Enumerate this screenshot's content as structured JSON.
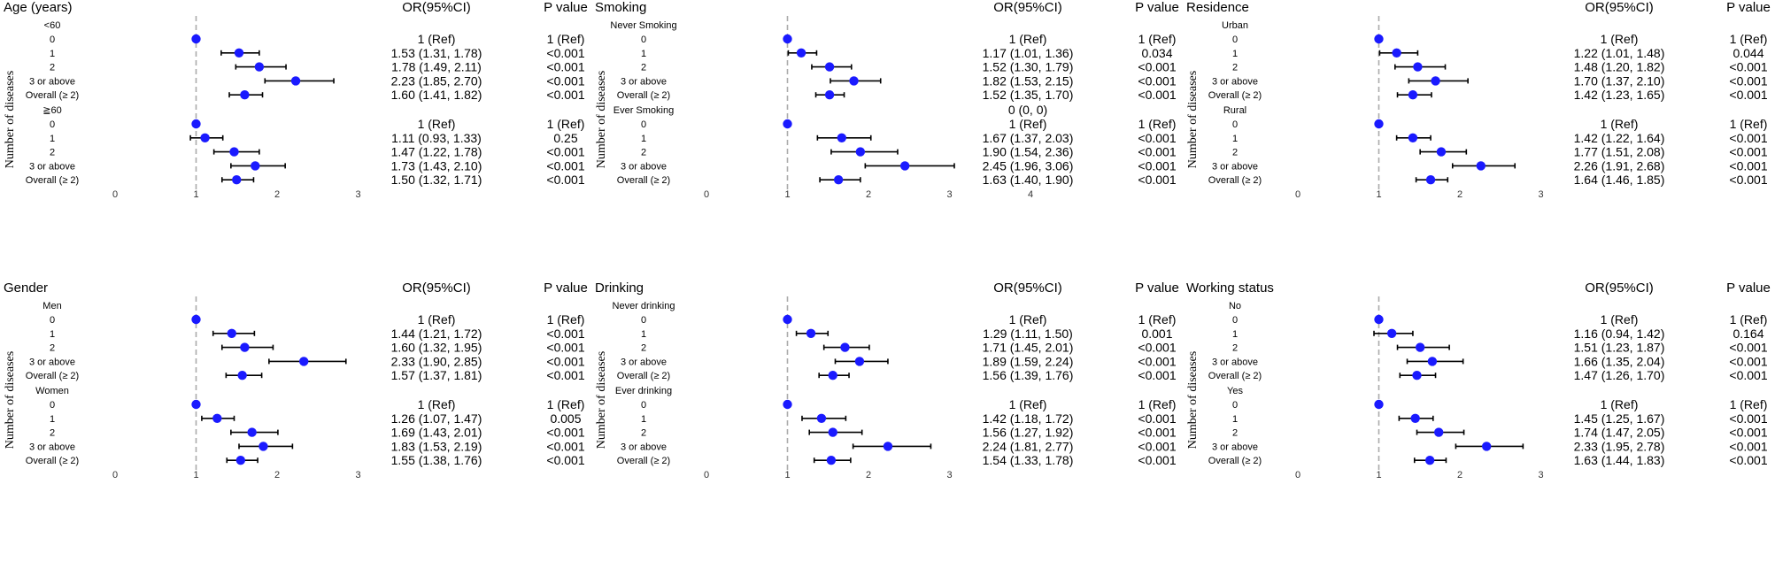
{
  "headers": {
    "or": "OR(95%CI)",
    "p": "P value"
  },
  "axis_label": "Number of diseases",
  "row_labels": [
    "0",
    "1",
    "2",
    "3 or above",
    "Overall (≥ 2)"
  ],
  "colors": {
    "point": "#1a1aff",
    "whisker": "#000000",
    "refline": "#aaaaaa"
  },
  "chart_data": [
    {
      "type": "forest",
      "title": "Age (years)",
      "x_ticks": [
        0,
        1,
        2,
        3
      ],
      "xlim": [
        0,
        3
      ],
      "groups": [
        {
          "label": "<60",
          "rows": [
            {
              "label": "0",
              "or": 1,
              "lo": 1,
              "hi": 1,
              "or_text": "1 (Ref)",
              "p": "1 (Ref)"
            },
            {
              "label": "1",
              "or": 1.53,
              "lo": 1.31,
              "hi": 1.78,
              "or_text": "1.53 (1.31, 1.78)",
              "p": "<0.001"
            },
            {
              "label": "2",
              "or": 1.78,
              "lo": 1.49,
              "hi": 2.11,
              "or_text": "1.78 (1.49, 2.11)",
              "p": "<0.001"
            },
            {
              "label": "3 or above",
              "or": 2.23,
              "lo": 1.85,
              "hi": 2.7,
              "or_text": "2.23 (1.85, 2.70)",
              "p": "<0.001"
            },
            {
              "label": "Overall (≥ 2)",
              "or": 1.6,
              "lo": 1.41,
              "hi": 1.82,
              "or_text": "1.60 (1.41, 1.82)",
              "p": "<0.001"
            }
          ]
        },
        {
          "label": "≧60",
          "rows": [
            {
              "label": "0",
              "or": 1,
              "lo": 1,
              "hi": 1,
              "or_text": "1 (Ref)",
              "p": "1 (Ref)"
            },
            {
              "label": "1",
              "or": 1.11,
              "lo": 0.93,
              "hi": 1.33,
              "or_text": "1.11 (0.93, 1.33)",
              "p": "0.25"
            },
            {
              "label": "2",
              "or": 1.47,
              "lo": 1.22,
              "hi": 1.78,
              "or_text": "1.47 (1.22, 1.78)",
              "p": "<0.001"
            },
            {
              "label": "3 or above",
              "or": 1.73,
              "lo": 1.43,
              "hi": 2.1,
              "or_text": "1.73 (1.43, 2.10)",
              "p": "<0.001"
            },
            {
              "label": "Overall (≥ 2)",
              "or": 1.5,
              "lo": 1.32,
              "hi": 1.71,
              "or_text": "1.50 (1.32, 1.71)",
              "p": "<0.001"
            }
          ]
        }
      ]
    },
    {
      "type": "forest",
      "title": "Smoking",
      "x_ticks": [
        0,
        1,
        2,
        3,
        4
      ],
      "xlim": [
        0,
        4
      ],
      "groups": [
        {
          "label": "Never Smoking",
          "rows": [
            {
              "label": "0",
              "or": 1,
              "lo": 1,
              "hi": 1,
              "or_text": "1 (Ref)",
              "p": "1 (Ref)"
            },
            {
              "label": "1",
              "or": 1.17,
              "lo": 1.01,
              "hi": 1.36,
              "or_text": "1.17 (1.01, 1.36)",
              "p": "0.034"
            },
            {
              "label": "2",
              "or": 1.52,
              "lo": 1.3,
              "hi": 1.79,
              "or_text": "1.52 (1.30, 1.79)",
              "p": "<0.001"
            },
            {
              "label": "3 or above",
              "or": 1.82,
              "lo": 1.53,
              "hi": 2.15,
              "or_text": "1.82 (1.53, 2.15)",
              "p": "<0.001"
            },
            {
              "label": "Overall (≥ 2)",
              "or": 1.52,
              "lo": 1.35,
              "hi": 1.7,
              "or_text": "1.52 (1.35, 1.70)",
              "p": "<0.001"
            }
          ]
        },
        {
          "label": "Ever Smoking",
          "header_text": "0 (0, 0)",
          "rows": [
            {
              "label": "0",
              "or": 1,
              "lo": 1,
              "hi": 1,
              "or_text": "1 (Ref)",
              "p": "1 (Ref)"
            },
            {
              "label": "1",
              "or": 1.67,
              "lo": 1.37,
              "hi": 2.03,
              "or_text": "1.67 (1.37, 2.03)",
              "p": "<0.001"
            },
            {
              "label": "2",
              "or": 1.9,
              "lo": 1.54,
              "hi": 2.36,
              "or_text": "1.90 (1.54, 2.36)",
              "p": "<0.001"
            },
            {
              "label": "3 or above",
              "or": 2.45,
              "lo": 1.96,
              "hi": 3.06,
              "or_text": "2.45 (1.96, 3.06)",
              "p": "<0.001"
            },
            {
              "label": "Overall (≥ 2)",
              "or": 1.63,
              "lo": 1.4,
              "hi": 1.9,
              "or_text": "1.63 (1.40, 1.90)",
              "p": "<0.001"
            }
          ]
        }
      ]
    },
    {
      "type": "forest",
      "title": "Residence",
      "x_ticks": [
        0,
        1,
        2,
        3
      ],
      "xlim": [
        0,
        3
      ],
      "groups": [
        {
          "label": "Urban",
          "rows": [
            {
              "label": "0",
              "or": 1,
              "lo": 1,
              "hi": 1,
              "or_text": "1 (Ref)",
              "p": "1 (Ref)"
            },
            {
              "label": "1",
              "or": 1.22,
              "lo": 1.01,
              "hi": 1.48,
              "or_text": "1.22 (1.01, 1.48)",
              "p": "0.044"
            },
            {
              "label": "2",
              "or": 1.48,
              "lo": 1.2,
              "hi": 1.82,
              "or_text": "1.48 (1.20, 1.82)",
              "p": "<0.001"
            },
            {
              "label": "3 or above",
              "or": 1.7,
              "lo": 1.37,
              "hi": 2.1,
              "or_text": "1.70 (1.37, 2.10)",
              "p": "<0.001"
            },
            {
              "label": "Overall (≥ 2)",
              "or": 1.42,
              "lo": 1.23,
              "hi": 1.65,
              "or_text": "1.42 (1.23, 1.65)",
              "p": "<0.001"
            }
          ]
        },
        {
          "label": "Rural",
          "rows": [
            {
              "label": "0",
              "or": 1,
              "lo": 1,
              "hi": 1,
              "or_text": "1 (Ref)",
              "p": "1 (Ref)"
            },
            {
              "label": "1",
              "or": 1.42,
              "lo": 1.22,
              "hi": 1.64,
              "or_text": "1.42 (1.22, 1.64)",
              "p": "<0.001"
            },
            {
              "label": "2",
              "or": 1.77,
              "lo": 1.51,
              "hi": 2.08,
              "or_text": "1.77 (1.51, 2.08)",
              "p": "<0.001"
            },
            {
              "label": "3 or above",
              "or": 2.26,
              "lo": 1.91,
              "hi": 2.68,
              "or_text": "2.26 (1.91, 2.68)",
              "p": "<0.001"
            },
            {
              "label": "Overall (≥ 2)",
              "or": 1.64,
              "lo": 1.46,
              "hi": 1.85,
              "or_text": "1.64 (1.46, 1.85)",
              "p": "<0.001"
            }
          ]
        }
      ]
    },
    {
      "type": "forest",
      "title": "Gender",
      "x_ticks": [
        0,
        1,
        2,
        3
      ],
      "xlim": [
        0,
        3
      ],
      "groups": [
        {
          "label": "Men",
          "rows": [
            {
              "label": "0",
              "or": 1,
              "lo": 1,
              "hi": 1,
              "or_text": "1 (Ref)",
              "p": "1 (Ref)"
            },
            {
              "label": "1",
              "or": 1.44,
              "lo": 1.21,
              "hi": 1.72,
              "or_text": "1.44 (1.21, 1.72)",
              "p": "<0.001"
            },
            {
              "label": "2",
              "or": 1.6,
              "lo": 1.32,
              "hi": 1.95,
              "or_text": "1.60 (1.32, 1.95)",
              "p": "<0.001"
            },
            {
              "label": "3 or above",
              "or": 2.33,
              "lo": 1.9,
              "hi": 2.85,
              "or_text": "2.33 (1.90, 2.85)",
              "p": "<0.001"
            },
            {
              "label": "Overall (≥ 2)",
              "or": 1.57,
              "lo": 1.37,
              "hi": 1.81,
              "or_text": "1.57 (1.37, 1.81)",
              "p": "<0.001"
            }
          ]
        },
        {
          "label": "Women",
          "rows": [
            {
              "label": "0",
              "or": 1,
              "lo": 1,
              "hi": 1,
              "or_text": "1 (Ref)",
              "p": "1 (Ref)"
            },
            {
              "label": "1",
              "or": 1.26,
              "lo": 1.07,
              "hi": 1.47,
              "or_text": "1.26 (1.07, 1.47)",
              "p": "0.005"
            },
            {
              "label": "2",
              "or": 1.69,
              "lo": 1.43,
              "hi": 2.01,
              "or_text": "1.69 (1.43, 2.01)",
              "p": "<0.001"
            },
            {
              "label": "3 or above",
              "or": 1.83,
              "lo": 1.53,
              "hi": 2.19,
              "or_text": "1.83 (1.53, 2.19)",
              "p": "<0.001"
            },
            {
              "label": "Overall (≥ 2)",
              "or": 1.55,
              "lo": 1.38,
              "hi": 1.76,
              "or_text": "1.55 (1.38, 1.76)",
              "p": "<0.001"
            }
          ]
        }
      ]
    },
    {
      "type": "forest",
      "title": "Drinking",
      "x_ticks": [
        0,
        1,
        2,
        3
      ],
      "xlim": [
        0,
        3
      ],
      "groups": [
        {
          "label": "Never drinking",
          "rows": [
            {
              "label": "0",
              "or": 1,
              "lo": 1,
              "hi": 1,
              "or_text": "1 (Ref)",
              "p": "1 (Ref)"
            },
            {
              "label": "1",
              "or": 1.29,
              "lo": 1.11,
              "hi": 1.5,
              "or_text": "1.29 (1.11, 1.50)",
              "p": "0.001"
            },
            {
              "label": "2",
              "or": 1.71,
              "lo": 1.45,
              "hi": 2.01,
              "or_text": "1.71 (1.45, 2.01)",
              "p": "<0.001"
            },
            {
              "label": "3 or above",
              "or": 1.89,
              "lo": 1.59,
              "hi": 2.24,
              "or_text": "1.89 (1.59, 2.24)",
              "p": "<0.001"
            },
            {
              "label": "Overall (≥ 2)",
              "or": 1.56,
              "lo": 1.39,
              "hi": 1.76,
              "or_text": "1.56 (1.39, 1.76)",
              "p": "<0.001"
            }
          ]
        },
        {
          "label": "Ever drinking",
          "rows": [
            {
              "label": "0",
              "or": 1,
              "lo": 1,
              "hi": 1,
              "or_text": "1 (Ref)",
              "p": "1 (Ref)"
            },
            {
              "label": "1",
              "or": 1.42,
              "lo": 1.18,
              "hi": 1.72,
              "or_text": "1.42 (1.18, 1.72)",
              "p": "<0.001"
            },
            {
              "label": "2",
              "or": 1.56,
              "lo": 1.27,
              "hi": 1.92,
              "or_text": "1.56 (1.27, 1.92)",
              "p": "<0.001"
            },
            {
              "label": "3 or above",
              "or": 2.24,
              "lo": 1.81,
              "hi": 2.77,
              "or_text": "2.24 (1.81, 2.77)",
              "p": "<0.001"
            },
            {
              "label": "Overall (≥ 2)",
              "or": 1.54,
              "lo": 1.33,
              "hi": 1.78,
              "or_text": "1.54 (1.33, 1.78)",
              "p": "<0.001"
            }
          ]
        }
      ]
    },
    {
      "type": "forest",
      "title": "Working status",
      "x_ticks": [
        0,
        1,
        2,
        3
      ],
      "xlim": [
        0,
        3
      ],
      "groups": [
        {
          "label": "No",
          "rows": [
            {
              "label": "0",
              "or": 1,
              "lo": 1,
              "hi": 1,
              "or_text": "1 (Ref)",
              "p": "1 (Ref)"
            },
            {
              "label": "1",
              "or": 1.16,
              "lo": 0.94,
              "hi": 1.42,
              "or_text": "1.16 (0.94, 1.42)",
              "p": "0.164"
            },
            {
              "label": "2",
              "or": 1.51,
              "lo": 1.23,
              "hi": 1.87,
              "or_text": "1.51 (1.23, 1.87)",
              "p": "<0.001"
            },
            {
              "label": "3 or above",
              "or": 1.66,
              "lo": 1.35,
              "hi": 2.04,
              "or_text": "1.66 (1.35, 2.04)",
              "p": "<0.001"
            },
            {
              "label": "Overall (≥ 2)",
              "or": 1.47,
              "lo": 1.26,
              "hi": 1.7,
              "or_text": "1.47 (1.26, 1.70)",
              "p": "<0.001"
            }
          ]
        },
        {
          "label": "Yes",
          "rows": [
            {
              "label": "0",
              "or": 1,
              "lo": 1,
              "hi": 1,
              "or_text": "1 (Ref)",
              "p": "1 (Ref)"
            },
            {
              "label": "1",
              "or": 1.45,
              "lo": 1.25,
              "hi": 1.67,
              "or_text": "1.45 (1.25, 1.67)",
              "p": "<0.001"
            },
            {
              "label": "2",
              "or": 1.74,
              "lo": 1.47,
              "hi": 2.05,
              "or_text": "1.74 (1.47, 2.05)",
              "p": "<0.001"
            },
            {
              "label": "3 or above",
              "or": 2.33,
              "lo": 1.95,
              "hi": 2.78,
              "or_text": "2.33 (1.95, 2.78)",
              "p": "<0.001"
            },
            {
              "label": "Overall (≥ 2)",
              "or": 1.63,
              "lo": 1.44,
              "hi": 1.83,
              "or_text": "1.63 (1.44, 1.83)",
              "p": "<0.001"
            }
          ]
        }
      ]
    }
  ]
}
